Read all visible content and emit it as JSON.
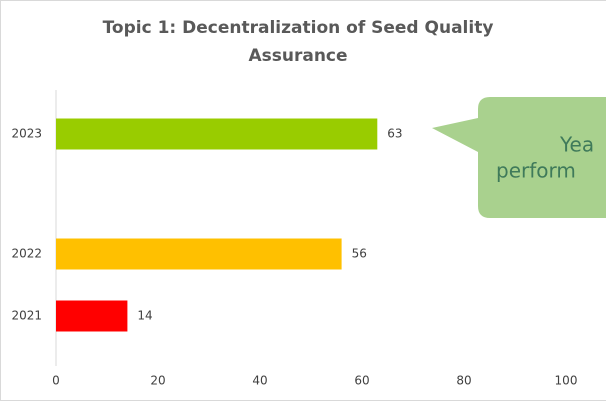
{
  "chart_data": {
    "type": "bar",
    "orientation": "horizontal",
    "title": "Topic 1: Decentralization of Seed Quality Assurance",
    "categories": [
      "2021",
      "2022",
      "2023"
    ],
    "values": [
      14,
      56,
      63
    ],
    "colors": [
      "#ff0000",
      "#ffc000",
      "#99cc00"
    ],
    "xlim": [
      0,
      100
    ],
    "xticks": [
      0,
      20,
      40,
      60,
      80,
      100
    ],
    "grid": false,
    "annotation": [
      "Yea",
      "perform"
    ]
  }
}
